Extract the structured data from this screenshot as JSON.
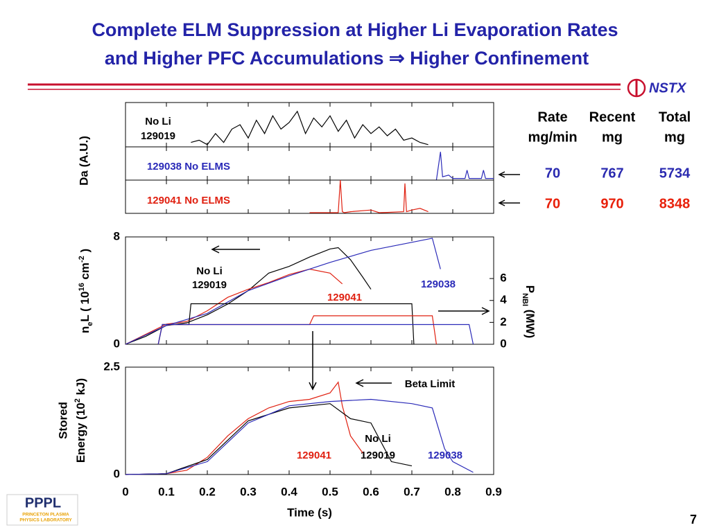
{
  "title": [
    "Complete ELM Suppression at Higher Li Evaporation Rates",
    "and Higher PFC Accumulations ⇒ Higher Confinement"
  ],
  "logo": "NSTX",
  "lab": {
    "name": "PPPL",
    "full": [
      "PRINCETON PLASMA",
      "PHYSICS LABORATORY"
    ]
  },
  "page_number": 7,
  "table": {
    "headers": [
      [
        "Rate",
        "mg/min"
      ],
      [
        "Recent",
        "mg"
      ],
      [
        "Total",
        "mg"
      ]
    ],
    "rows": [
      {
        "color": "#2a2ab0",
        "values": [
          70,
          767,
          5734
        ]
      },
      {
        "color": "#e8200a",
        "values": [
          70,
          970,
          8348
        ]
      }
    ]
  },
  "chart_data": [
    {
      "type": "line",
      "ylabel": "Da (A.U.)",
      "xlim": [
        0,
        0.9
      ],
      "ylim": [
        0,
        1
      ],
      "annotations": [
        "No Li",
        "129019"
      ],
      "series": [
        {
          "color": "#000000",
          "x": [
            0.16,
            0.18,
            0.2,
            0.22,
            0.24,
            0.26,
            0.28,
            0.3,
            0.32,
            0.34,
            0.36,
            0.38,
            0.4,
            0.42,
            0.44,
            0.46,
            0.48,
            0.5,
            0.52,
            0.54,
            0.56,
            0.58,
            0.6,
            0.62,
            0.64,
            0.66,
            0.68,
            0.7,
            0.72,
            0.74
          ],
          "values": [
            0.1,
            0.15,
            0.05,
            0.3,
            0.1,
            0.4,
            0.5,
            0.2,
            0.6,
            0.3,
            0.7,
            0.4,
            0.55,
            0.8,
            0.3,
            0.65,
            0.45,
            0.7,
            0.35,
            0.6,
            0.2,
            0.5,
            0.3,
            0.45,
            0.25,
            0.4,
            0.15,
            0.2,
            0.1,
            0.05
          ]
        }
      ]
    },
    {
      "type": "line",
      "xlim": [
        0,
        0.9
      ],
      "ylim": [
        0,
        1
      ],
      "annotations": [
        "129038 No ELMS"
      ],
      "series": [
        {
          "color": "#2a2ab8",
          "x": [
            0.76,
            0.77,
            0.775,
            0.79,
            0.8,
            0.81,
            0.83,
            0.835,
            0.84,
            0.87,
            0.875,
            0.88,
            0.9
          ],
          "values": [
            0,
            0.85,
            0.1,
            0.15,
            0.05,
            0.05,
            0.05,
            0.3,
            0.05,
            0.05,
            0.3,
            0.05,
            0.05
          ]
        }
      ]
    },
    {
      "type": "line",
      "xlim": [
        0,
        0.9
      ],
      "ylim": [
        0,
        1
      ],
      "annotations": [
        "129041 No ELMS"
      ],
      "series": [
        {
          "color": "#e02010",
          "x": [
            0.45,
            0.52,
            0.525,
            0.53,
            0.535,
            0.55,
            0.6,
            0.62,
            0.64,
            0.68,
            0.683,
            0.687,
            0.7,
            0.72,
            0.74
          ],
          "values": [
            0.02,
            0.02,
            1,
            0.05,
            0.02,
            0.05,
            0.1,
            0.02,
            0.03,
            0.05,
            0.9,
            0.05,
            0.1,
            0.15,
            0.05
          ]
        }
      ]
    },
    {
      "type": "line",
      "ylabel": [
        "n",
        "e",
        "L ( 10",
        "16",
        " cm",
        "-2",
        " )"
      ],
      "y2label": [
        "P",
        "NBI",
        " (MW)"
      ],
      "xlim": [
        0,
        0.9
      ],
      "ylim": [
        0,
        8
      ],
      "yticks": [
        0,
        8
      ],
      "y2lim": [
        0,
        9.8
      ],
      "y2ticks": [
        0,
        2,
        4,
        6
      ],
      "annotations": [
        "No Li",
        "129019",
        "129041",
        "129038"
      ],
      "series": [
        {
          "color": "#000000",
          "x": [
            0,
            0.05,
            0.1,
            0.15,
            0.2,
            0.25,
            0.3,
            0.35,
            0.4,
            0.45,
            0.5,
            0.52,
            0.55,
            0.58,
            0.6
          ],
          "values": [
            0,
            0.6,
            1.4,
            1.6,
            2.2,
            3,
            4,
            5.3,
            5.8,
            6.5,
            7.1,
            7.2,
            6.3,
            5,
            4.1
          ]
        },
        {
          "color": "#e02010",
          "x": [
            0,
            0.1,
            0.15,
            0.2,
            0.25,
            0.3,
            0.35,
            0.4,
            0.45,
            0.5,
            0.53
          ],
          "values": [
            0,
            1.5,
            1.7,
            2.5,
            3.5,
            4.1,
            4.6,
            5.2,
            5.6,
            5.3,
            4.5
          ]
        },
        {
          "color": "#2a2ab8",
          "x": [
            0,
            0.1,
            0.2,
            0.3,
            0.4,
            0.5,
            0.6,
            0.7,
            0.75,
            0.77
          ],
          "values": [
            0,
            1.4,
            2.3,
            4,
            5.1,
            6.1,
            7,
            7.6,
            7.9,
            5.6
          ]
        },
        {
          "color": "#000000",
          "axis": "y2",
          "x": [
            0.08,
            0.09,
            0.155,
            0.16,
            0.7,
            0.705
          ],
          "values": [
            0,
            1.8,
            1.8,
            3.7,
            3.7,
            0
          ]
        },
        {
          "color": "#e02010",
          "axis": "y2",
          "x": [
            0.08,
            0.09,
            0.45,
            0.46,
            0.75,
            0.76
          ],
          "values": [
            0,
            1.8,
            1.8,
            2.6,
            2.6,
            0
          ]
        },
        {
          "color": "#2a2ab8",
          "axis": "y2",
          "x": [
            0.08,
            0.09,
            0.84,
            0.85
          ],
          "values": [
            0,
            1.8,
            1.8,
            0
          ]
        }
      ]
    },
    {
      "type": "line",
      "ylabel": [
        "Stored",
        "Energy (10",
        "2",
        " kJ)"
      ],
      "xlabel": "Time (s)",
      "xlim": [
        0,
        0.9
      ],
      "xticks": [
        0,
        0.1,
        0.2,
        0.3,
        0.4,
        0.5,
        0.6,
        0.7,
        0.8,
        0.9
      ],
      "ylim": [
        0,
        2.5
      ],
      "yticks": [
        0,
        2.5
      ],
      "annotations": [
        "Beta Limit",
        "No Li",
        "129019",
        "129041",
        "129038"
      ],
      "series": [
        {
          "color": "#e02010",
          "x": [
            0,
            0.1,
            0.15,
            0.2,
            0.25,
            0.3,
            0.35,
            0.4,
            0.45,
            0.5,
            0.52,
            0.53,
            0.55,
            0.58
          ],
          "values": [
            0,
            0.02,
            0.1,
            0.4,
            0.9,
            1.3,
            1.55,
            1.7,
            1.75,
            1.9,
            2.15,
            1.6,
            0.9,
            0.5
          ]
        },
        {
          "color": "#000000",
          "x": [
            0,
            0.1,
            0.2,
            0.3,
            0.4,
            0.5,
            0.55,
            0.6,
            0.65,
            0.7
          ],
          "values": [
            0,
            0.02,
            0.35,
            1.25,
            1.55,
            1.65,
            1.3,
            1.2,
            0.3,
            0.2
          ]
        },
        {
          "color": "#2a2ab8",
          "x": [
            0,
            0.1,
            0.2,
            0.3,
            0.4,
            0.5,
            0.6,
            0.7,
            0.75,
            0.78,
            0.8,
            0.85
          ],
          "values": [
            0,
            0.02,
            0.3,
            1.2,
            1.6,
            1.7,
            1.75,
            1.65,
            1.55,
            0.6,
            0.3,
            0.05
          ]
        }
      ]
    }
  ]
}
